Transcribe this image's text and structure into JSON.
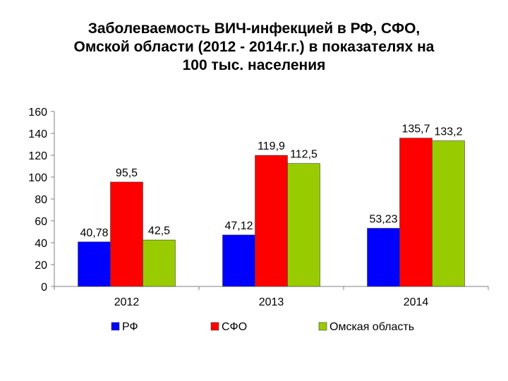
{
  "chart_data": {
    "type": "bar",
    "title_lines": [
      "Заболеваемость ВИЧ-инфекцией в  РФ, СФО,",
      "Омской области  (2012 - 2014г.г.) в показателях на",
      "100 тыс. населения"
    ],
    "categories": [
      "2012",
      "2013",
      "2014"
    ],
    "series": [
      {
        "name": "РФ",
        "color": "#0000ff",
        "values": [
          40.78,
          47.12,
          53.23
        ],
        "labels": [
          "40,78",
          "47,12",
          "53,23"
        ]
      },
      {
        "name": "СФО",
        "color": "#ff0000",
        "values": [
          95.5,
          119.9,
          135.7
        ],
        "labels": [
          "95,5",
          "119,9",
          "135,7"
        ]
      },
      {
        "name": "Омская область",
        "color": "#99cc00",
        "values": [
          42.5,
          112.5,
          133.2
        ],
        "labels": [
          "42,5",
          "112,5",
          "133,2"
        ]
      }
    ],
    "ylim": [
      0,
      160
    ],
    "yticks": [
      "0",
      "20",
      "40",
      "60",
      "80",
      "100",
      "120",
      "140",
      "160"
    ],
    "xlabel": "",
    "ylabel": "",
    "grid": false,
    "legend_position": "bottom"
  }
}
